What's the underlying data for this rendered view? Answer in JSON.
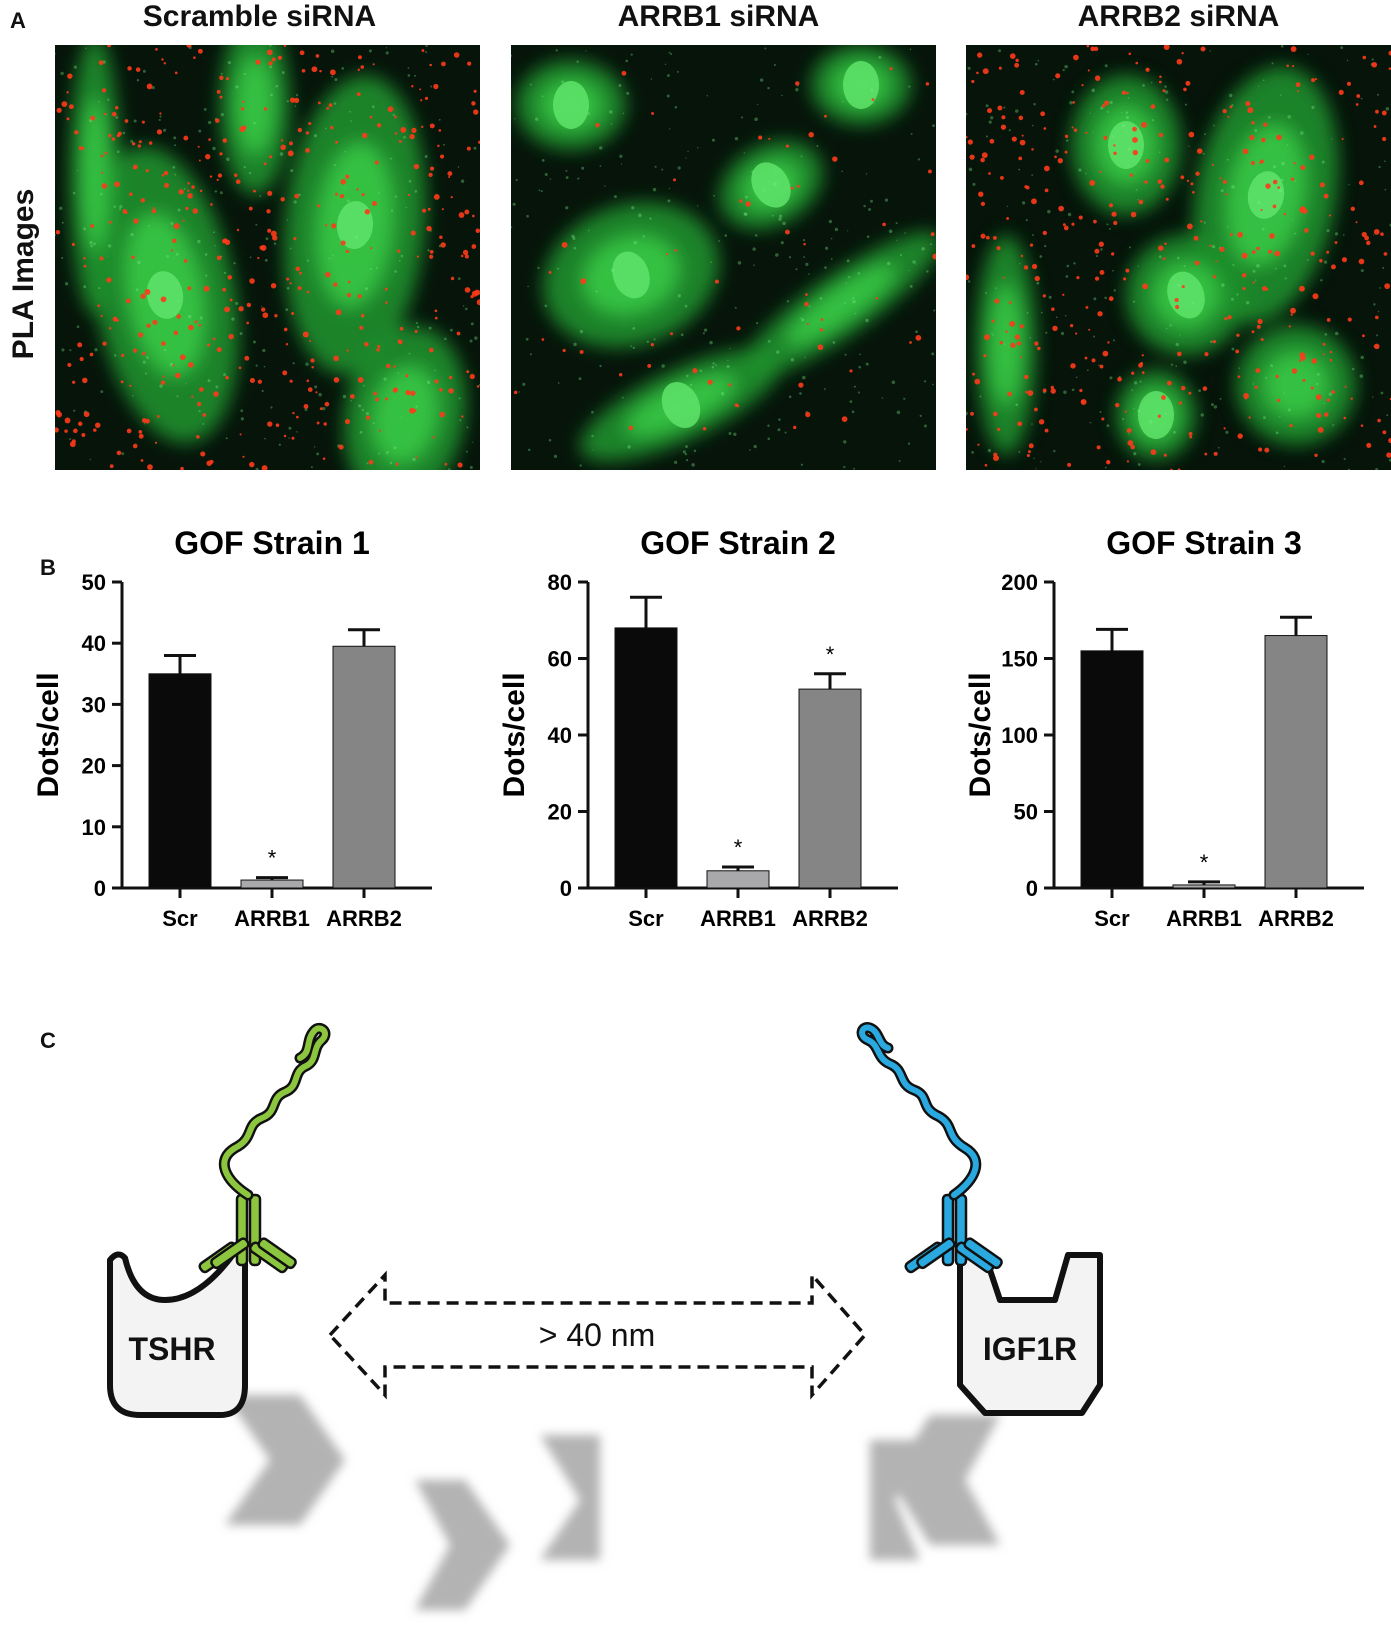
{
  "panels": {
    "a": "A",
    "b": "B",
    "c": "C"
  },
  "micrographs": {
    "row_label": "PLA Images",
    "titles": [
      "Scramble siRNA",
      "ARRB1 siRNA",
      "ARRB2 siRNA"
    ]
  },
  "colors": {
    "scr": "#0a0a0a",
    "arrb1": "#a9a9ab",
    "arrb2": "#858585",
    "tshr_antibody": "#8cc63f",
    "igf1r_antibody": "#29a9e0",
    "pla_signal": "#ff3a1a",
    "cell_stain": "#2fc23a"
  },
  "chart_data": [
    {
      "type": "bar",
      "title": "GOF Strain 1",
      "ylabel": "Dots/cell",
      "categories": [
        "Scr",
        "ARRB1",
        "ARRB2"
      ],
      "values": [
        35,
        1.3,
        39.5
      ],
      "errors": [
        3,
        0.4,
        2.7
      ],
      "ylim": [
        0,
        50
      ],
      "yticks": [
        0,
        10,
        20,
        30,
        40,
        50
      ],
      "significance": [
        "",
        "*",
        ""
      ],
      "grid": false
    },
    {
      "type": "bar",
      "title": "GOF Strain 2",
      "ylabel": "Dots/cell",
      "categories": [
        "Scr",
        "ARRB1",
        "ARRB2"
      ],
      "values": [
        68,
        4.5,
        52
      ],
      "errors": [
        8,
        1,
        4
      ],
      "ylim": [
        0,
        80
      ],
      "yticks": [
        0,
        20,
        40,
        60,
        80
      ],
      "significance": [
        "",
        "*",
        "*"
      ],
      "grid": false
    },
    {
      "type": "bar",
      "title": "GOF Strain 3",
      "ylabel": "Dots/cell",
      "categories": [
        "Scr",
        "ARRB1",
        "ARRB2"
      ],
      "values": [
        155,
        2,
        165
      ],
      "errors": [
        14,
        2,
        12
      ],
      "ylim": [
        0,
        200
      ],
      "yticks": [
        0,
        50,
        100,
        150,
        200
      ],
      "significance": [
        "",
        "*",
        ""
      ],
      "grid": false
    }
  ],
  "diagram": {
    "left_receptor": "TSHR",
    "right_receptor": "IGF1R",
    "distance_label": "> 40 nm"
  }
}
